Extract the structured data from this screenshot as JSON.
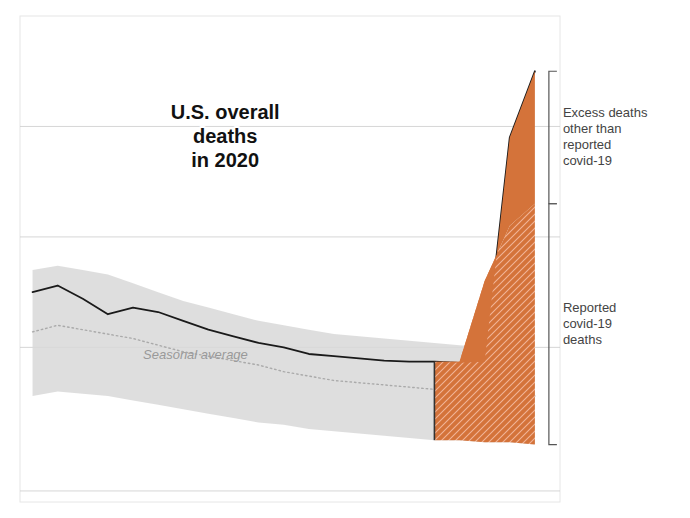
{
  "chart_data": {
    "type": "area",
    "title": "U.S. overall\ndeaths\nin 2020",
    "x": [
      0,
      1,
      2,
      3,
      4,
      5,
      6,
      7,
      8,
      9,
      10,
      11,
      12,
      13,
      14,
      15,
      16,
      17,
      18,
      19,
      20
    ],
    "xlim": [
      -0.5,
      21
    ],
    "ylim": [
      -2,
      20
    ],
    "yticks": [
      -1.5,
      5,
      10,
      15
    ],
    "grid": true,
    "tick_labels": false,
    "series": [
      {
        "type": "area",
        "color": "#d8d8d8",
        "values": [
          8.5,
          8.7,
          8.5,
          8.3,
          7.9,
          7.5,
          7.1,
          6.8,
          6.5,
          6.2,
          6.0,
          5.8,
          5.6,
          5.5,
          5.4,
          5.3,
          5.2,
          5.1,
          5.0,
          4.95,
          4.9
        ],
        "lower": [
          2.8,
          3.0,
          2.9,
          2.8,
          2.6,
          2.4,
          2.2,
          2.0,
          1.8,
          1.6,
          1.5,
          1.3,
          1.2,
          1.1,
          1.0,
          0.9,
          0.8,
          0.8,
          0.7,
          0.7,
          0.6
        ]
      },
      {
        "name": "Seasonal average",
        "type": "line",
        "color": "#aaaaaa",
        "line_style": "dotted",
        "values": [
          5.7,
          6.0,
          5.8,
          5.6,
          5.4,
          5.1,
          4.8,
          4.6,
          4.4,
          4.2,
          3.9,
          3.7,
          3.5,
          3.4,
          3.3,
          3.2,
          3.1,
          3.0,
          2.9,
          2.85,
          2.8
        ]
      },
      {
        "type": "line",
        "color": "#1a1a1a",
        "line_style": "solid",
        "values": [
          7.5,
          7.8,
          7.2,
          6.5,
          6.8,
          6.6,
          6.2,
          5.8,
          5.5,
          5.2,
          5.0,
          4.7,
          4.6,
          4.5,
          4.4,
          4.35,
          4.35,
          4.3,
          4.35,
          14.5,
          17.5
        ]
      },
      {
        "name": "Reported\ncovid-19\ndeaths",
        "type": "area",
        "color": "#d4733a",
        "line_style": "hatched",
        "values": [
          null,
          null,
          null,
          null,
          null,
          null,
          null,
          null,
          null,
          null,
          null,
          null,
          null,
          null,
          null,
          null,
          4.35,
          4.35,
          8.0,
          10.5,
          11.5
        ],
        "lower": [
          null,
          null,
          null,
          null,
          null,
          null,
          null,
          null,
          null,
          null,
          null,
          null,
          null,
          null,
          null,
          null,
          0.8,
          0.8,
          0.7,
          0.7,
          0.6
        ]
      },
      {
        "name": "Excess deaths\nother than\nreported\ncovid-19",
        "type": "area",
        "color": "#d4733a",
        "line_style": "solid",
        "values": [
          null,
          null,
          null,
          null,
          null,
          null,
          null,
          null,
          null,
          null,
          null,
          null,
          null,
          null,
          null,
          null,
          4.35,
          4.3,
          4.35,
          14.5,
          17.5
        ],
        "lower": [
          null,
          null,
          null,
          null,
          null,
          null,
          null,
          null,
          null,
          null,
          null,
          null,
          null,
          null,
          null,
          null,
          4.35,
          4.35,
          8.0,
          10.5,
          11.5
        ]
      }
    ]
  }
}
